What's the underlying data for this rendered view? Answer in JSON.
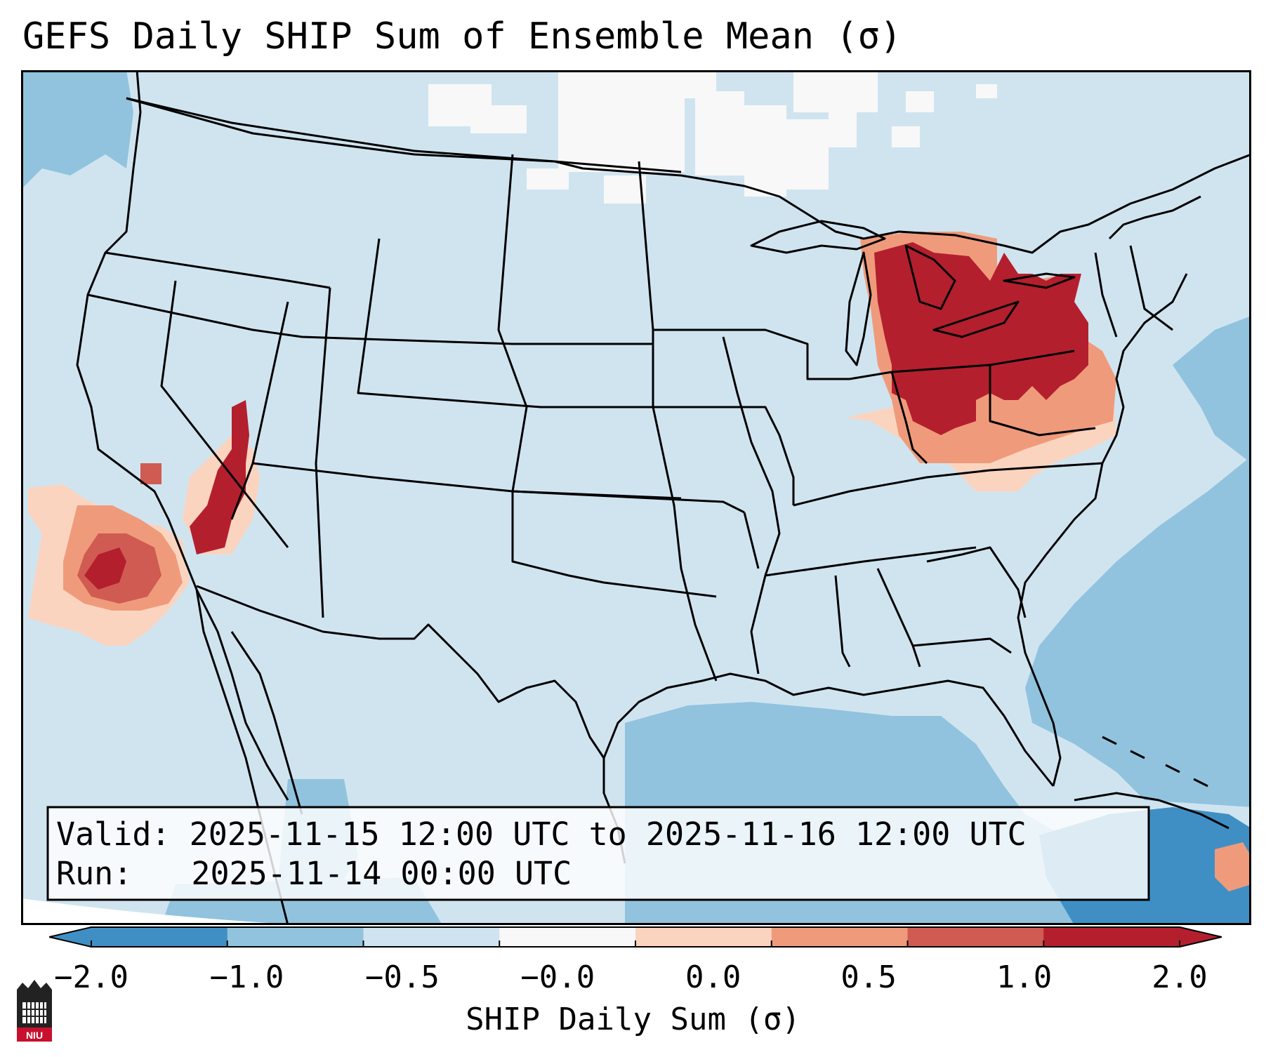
{
  "title": "GEFS Daily SHIP Sum of Ensemble Mean (σ)",
  "info_box": {
    "valid_label": "Valid:",
    "valid_value": "2025-11-15 12:00 UTC to 2025-11-16 12:00 UTC",
    "run_label": "Run:",
    "run_value": "2025-11-14 00:00 UTC"
  },
  "colorbar": {
    "label": "SHIP Daily Sum (σ)",
    "ticks": [
      "−2.0",
      "−1.0",
      "−0.5",
      "−0.0",
      "0.0",
      "0.5",
      "1.0",
      "2.0"
    ],
    "bin_colors": [
      "#3f8fc4",
      "#91c3de",
      "#cfe4f0",
      "#f8f8f8",
      "#fbd4bf",
      "#ef9b7b",
      "#d05b52",
      "#b41f2e"
    ],
    "extend": "both"
  },
  "logo": {
    "text": "NIU",
    "icon": "university-building-icon",
    "color": "#c8102e"
  },
  "map": {
    "ocean_color": "#91c3de",
    "land_color": "#d0e4f0",
    "regions": [
      {
        "name": "great-lakes-ohio-valley",
        "sigma": 2.0
      },
      {
        "name": "southern-california-nevada",
        "sigma": 2.0
      },
      {
        "name": "pacific-offshore-california",
        "sigma": 1.0
      },
      {
        "name": "caribbean-east",
        "sigma": 0.5
      }
    ]
  }
}
